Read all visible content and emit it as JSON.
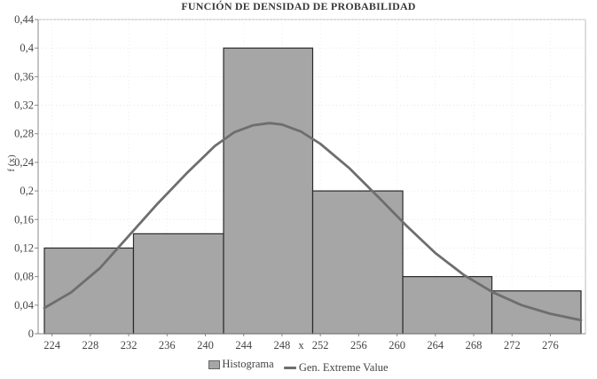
{
  "chart_data": {
    "type": "bar",
    "title": "FUNCIÓN DE DENSIDAD DE PROBABILIDAD",
    "xlabel": "x",
    "ylabel": "f (x)",
    "xlim": [
      223.2,
      279.2
    ],
    "ylim": [
      0,
      0.44
    ],
    "x_ticks": [
      "224",
      "228",
      "232",
      "236",
      "240",
      "244",
      "248",
      "252",
      "256",
      "260",
      "264",
      "268",
      "272",
      "276"
    ],
    "y_ticks": [
      "0",
      "0,04",
      "0,08",
      "0,12",
      "0,16",
      "0,2",
      "0,24",
      "0,28",
      "0,32",
      "0,36",
      "0,4",
      "0,44"
    ],
    "grid": true,
    "legend_position": "bottom",
    "series": [
      {
        "name": "Histograma",
        "type": "bar",
        "bin_edges": [
          223.2,
          232.5,
          241.9,
          251.2,
          260.6,
          269.9,
          279.2
        ],
        "values": [
          0.12,
          0.14,
          0.4,
          0.2,
          0.08,
          0.06
        ],
        "color": "#a6a6a6"
      },
      {
        "name": "Gen. Extreme Value",
        "type": "line",
        "x": [
          223.2,
          226,
          229,
          232,
          235,
          238,
          241,
          243,
          245,
          246.7,
          248,
          250,
          252,
          255,
          258,
          261,
          264,
          267,
          270,
          273,
          276,
          279.2
        ],
        "y": [
          0.036,
          0.058,
          0.092,
          0.137,
          0.182,
          0.224,
          0.263,
          0.282,
          0.292,
          0.295,
          0.293,
          0.283,
          0.266,
          0.232,
          0.192,
          0.151,
          0.113,
          0.082,
          0.058,
          0.04,
          0.028,
          0.019
        ],
        "color": "#6e6e6e"
      }
    ]
  },
  "legend": {
    "items": [
      {
        "label": "Histograma",
        "icon": "bar-swatch-icon"
      },
      {
        "label": "Gen. Extreme Value",
        "icon": "line-swatch-icon"
      }
    ]
  }
}
